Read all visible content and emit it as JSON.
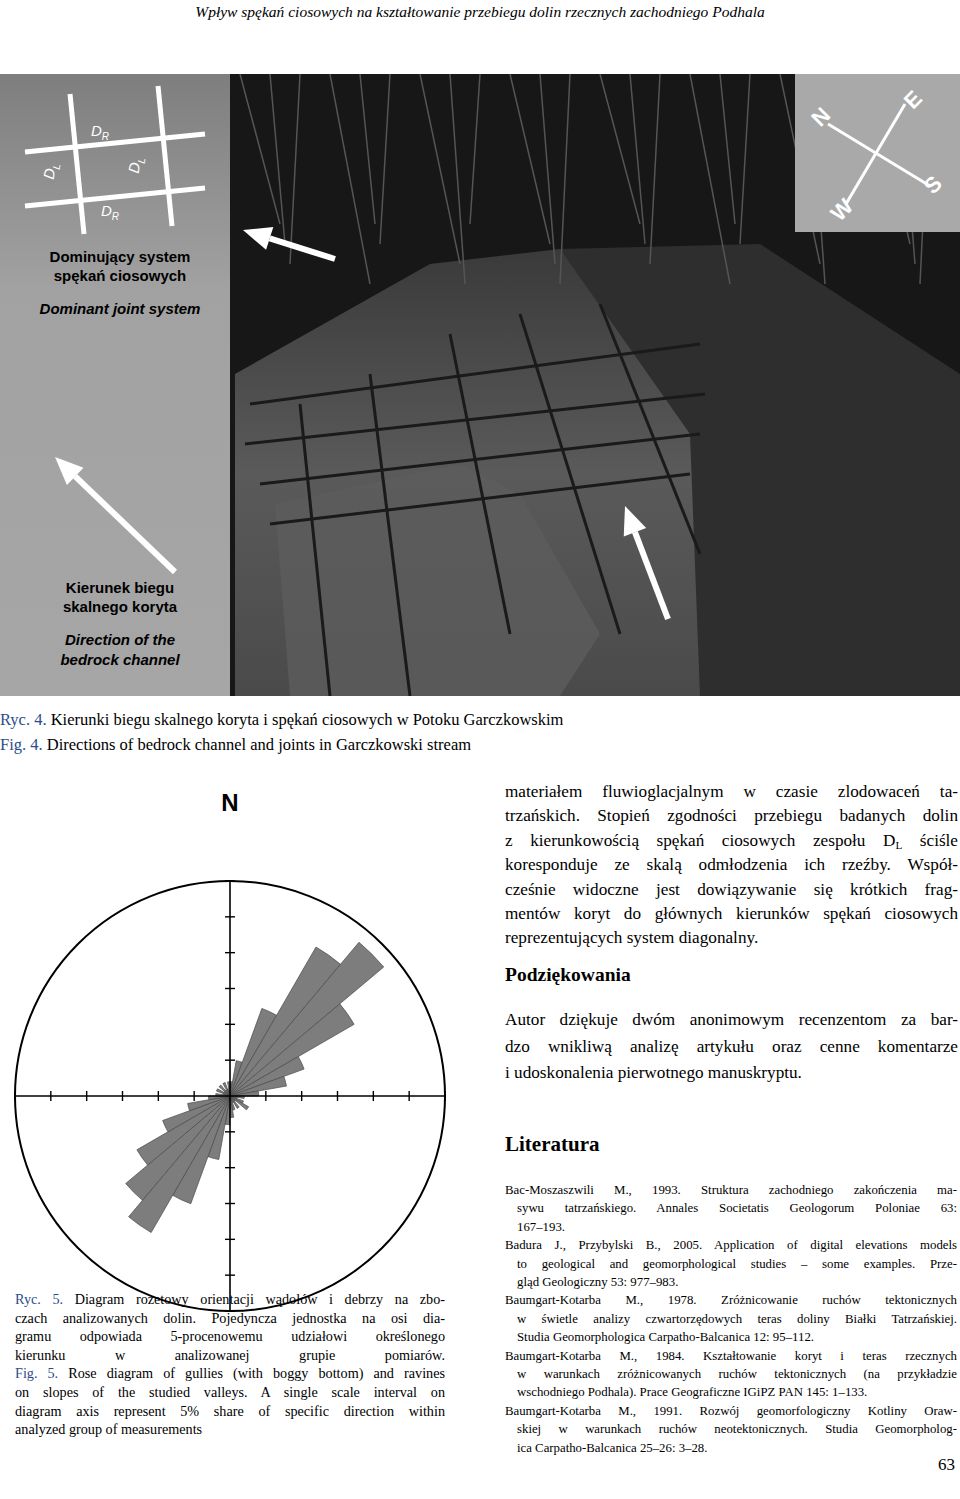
{
  "page": {
    "running_header": "Wpływ spękań ciosowych na kształtowanie przebiegu dolin rzecznych zachodniego Podhala",
    "figure_4": {
      "legend": {
        "joint_labels": [
          {
            "main": "D",
            "sub": "R"
          },
          {
            "main": "D",
            "sub": "L"
          },
          {
            "main": "D",
            "sub": "L"
          },
          {
            "main": "D",
            "sub": "R"
          }
        ],
        "joint_title_pl": [
          "Dominujący system",
          "spękań ciosowych"
        ],
        "joint_title_en": "Dominant joint system",
        "channel_title_pl": [
          "Kierunek biegu",
          "skalnego koryta"
        ],
        "channel_title_en": [
          "Direction of the",
          "bedrock channel"
        ]
      },
      "compass": [
        "N",
        "E",
        "S",
        "W"
      ],
      "caption": [
        [
          {
            "label": "Ryc. 4."
          },
          " Kierunki biegu skalnego koryta i spękań ciosowych w Potoku Garczkowskim"
        ],
        [
          {
            "label": "Fig. 4."
          },
          " Directions of bedrock channel and joints in Garczkowski stream"
        ]
      ]
    },
    "main_text": {
      "lines": [
        [
          "materiałem fluwioglacjalnym w czasie zlodowaceń ta-"
        ],
        [
          "trzańskich. Stopień zgodności przebiegu badanych dolin"
        ],
        [
          "z kierunkowością spękań ciosowych zespołu D",
          {
            "sub": "L"
          },
          " ściśle"
        ],
        [
          "koresponduje ze skalą odmłodzenia ich rzeźby. Współ-"
        ],
        [
          "cześnie widoczne jest dowiązywanie się krótkich frag-"
        ],
        [
          "mentów koryt do głównych kierunków spękań ciosowych"
        ],
        [
          "reprezentujących system diagonalny."
        ]
      ]
    },
    "acknowledgments": {
      "heading": "Podziękowania",
      "lines": [
        [
          "Autor dziękuje dwóm anonimowym recenzentom za bar-"
        ],
        [
          "dzo wnikliwą analizę artykułu oraz cenne komentarze"
        ],
        [
          "i udoskonalenia pierwotnego manuskryptu."
        ]
      ]
    },
    "figure_5": {
      "caption": [
        [
          {
            "label": "Ryc. 5."
          },
          " Diagram rozetowy orientacji wądołów i debrzy na zbo-"
        ],
        [
          "czach analizowanych dolin. Pojedyncza jednostka na osi dia-"
        ],
        [
          "gramu odpowiada 5-procenowemu udziałowi określonego"
        ],
        [
          "kierunku w analizowanej grupie pomiarów."
        ],
        [
          {
            "label": "Fig. 5."
          },
          " Rose diagram of gullies (with boggy bottom) and ravines"
        ],
        [
          "on slopes of the studied valleys. A single scale interval on"
        ],
        [
          "diagram axis represent 5% share of specific direction within"
        ],
        [
          "analyzed group of measurements"
        ]
      ]
    },
    "references": {
      "heading": "Literatura",
      "items": [
        [
          "Bac-Moszaszwili M., 1993. Struktura zachodniego zakończenia ma-",
          "sywu tatrzańskiego. Annales Societatis Geologorum Poloniae 63:",
          "167–193."
        ],
        [
          "Badura J., Przybylski B., 2005. Application of digital elevations models",
          "to geological and geomorphological studies – some examples. Prze-",
          "gląd Geologiczny 53: 977–983."
        ],
        [
          "Baumgart-Kotarba M., 1978. Zróżnicowanie ruchów tektonicznych",
          "w świetle analizy czwartorzędowych teras doliny Białki Tatrzańskiej.",
          "Studia Geomorphologica Carpatho-Balcanica 12: 95–112."
        ],
        [
          "Baumgart-Kotarba M., 1984. Kształtowanie koryt i teras rzecznych",
          "w warunkach zróżnicowanych ruchów tektonicznych (na przykładzie",
          "wschodniego Podhala). Prace Geograficzne IGiPZ PAN 145: 1–133."
        ],
        [
          "Baumgart-Kotarba M., 1991. Rozwój geomorfologiczny Kotliny Oraw-",
          "skiej w warunkach ruchów neotektonicznych. Studia Geomorpholog-",
          "ica Carpatho-Balcanica 25–26: 3–28."
        ]
      ]
    },
    "page_number": "63"
  },
  "chart_data": {
    "type": "rose",
    "annotations": [
      "N"
    ],
    "x": [
      0,
      10,
      20,
      30,
      40,
      50,
      60,
      70,
      80,
      90,
      100,
      110,
      120,
      130,
      140,
      150,
      160,
      170,
      180,
      190,
      200,
      210,
      220,
      230,
      240,
      250,
      260,
      270,
      280,
      290,
      300,
      310,
      320,
      330,
      340,
      350
    ],
    "values": [
      2,
      5,
      13,
      24,
      28,
      20,
      11,
      8,
      4,
      2,
      1,
      2,
      3,
      1,
      2,
      1,
      2,
      3,
      4,
      9,
      16,
      22,
      19,
      15,
      10,
      6,
      3,
      2,
      1,
      2,
      1,
      2,
      1,
      2,
      1,
      2
    ],
    "xlim": [
      0,
      360
    ],
    "ylim": [
      0,
      30
    ],
    "yticks": [
      5,
      10,
      15,
      20,
      25,
      30
    ],
    "tick_labels": false,
    "color": "#7d7d7d"
  }
}
